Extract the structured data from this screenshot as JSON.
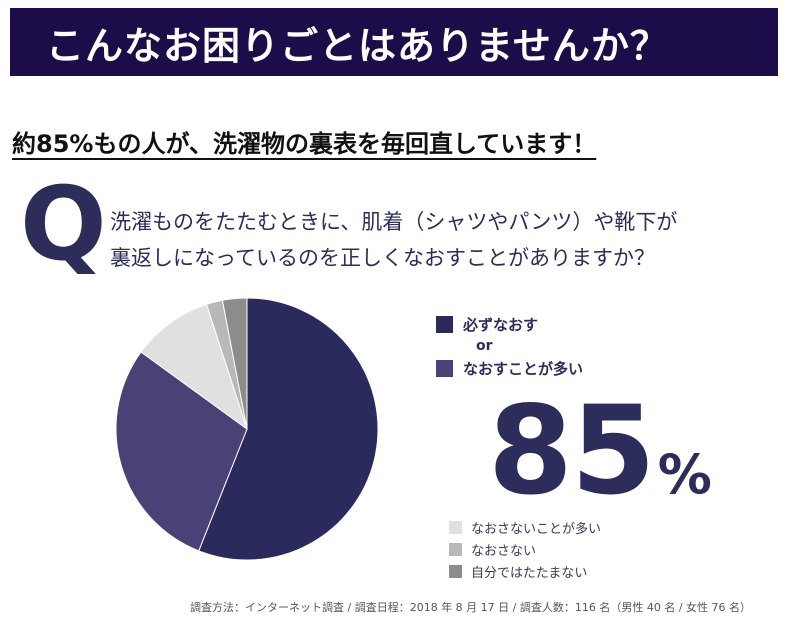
{
  "banner": {
    "title": "こんなお困りごとはありませんか？"
  },
  "headline": "約85%もの人が、洗濯物の裏表を毎回直しています！",
  "question": {
    "letter": "Q",
    "line1": "洗濯ものをたたむときに、肌着（シャツやパンツ）や靴下が",
    "line2": "裏返しになっているのを正しくなおすことがありますか？"
  },
  "chart_data": {
    "type": "pie",
    "start_angle_deg": 0,
    "direction": "clockwise",
    "slices": [
      {
        "label": "必ずなおす",
        "value": 56,
        "color": "#2b2a5c"
      },
      {
        "label": "なおすことが多い",
        "value": 29,
        "color": "#4a4277"
      },
      {
        "label": "なおさないことが多い",
        "value": 10,
        "color": "#e0e0e0"
      },
      {
        "label": "なおさない",
        "value": 2,
        "color": "#b8b8b8"
      },
      {
        "label": "自分ではたたまない",
        "value": 3,
        "color": "#8c8c8c"
      }
    ],
    "legend_or": "or",
    "highlight": {
      "value": "85",
      "unit": "%"
    }
  },
  "footnote": "調査方法：インターネット調査 / 調査日程：2018 年 8 月 17 日 / 調査人数：116 名（男性 40 名 / 女性 76 名）"
}
